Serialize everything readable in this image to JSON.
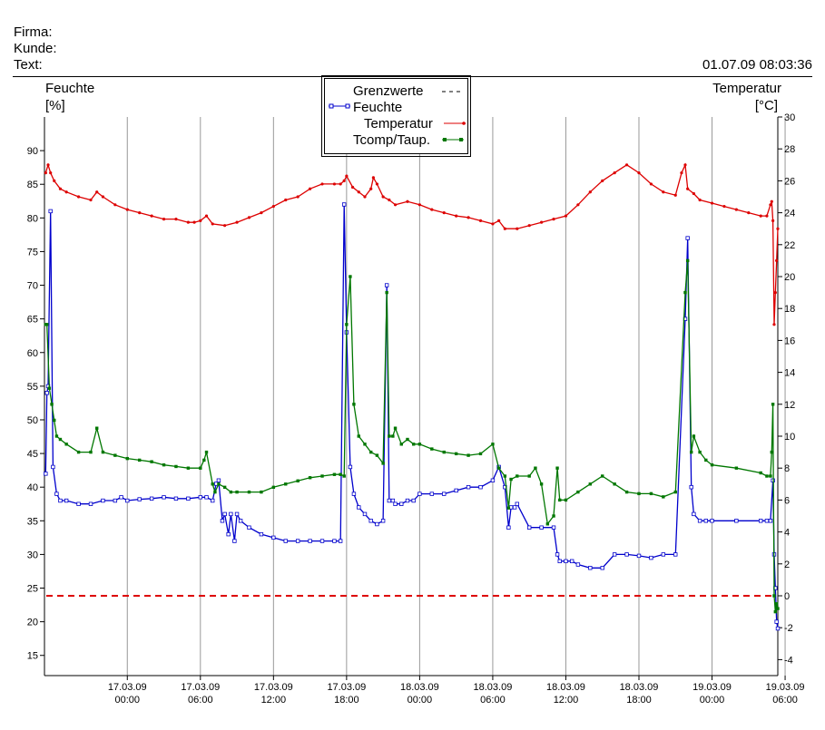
{
  "header": {
    "firma_label": "Firma:",
    "kunde_label": "Kunde:",
    "text_label": "Text:",
    "timestamp": "01.07.09 08:03:36"
  },
  "chart_data": {
    "type": "line",
    "left_axis": {
      "title": "Feuchte",
      "unit": "[%]",
      "ylim": [
        12,
        95
      ],
      "ticks": [
        15,
        20,
        25,
        30,
        35,
        40,
        45,
        50,
        55,
        60,
        65,
        70,
        75,
        80,
        85,
        90
      ]
    },
    "right_axis": {
      "title": "Temperatur",
      "unit": "[°C]",
      "ylim": [
        -5,
        30
      ],
      "ticks": [
        -4,
        -2,
        0,
        2,
        4,
        6,
        8,
        10,
        12,
        14,
        16,
        18,
        20,
        22,
        24,
        26,
        28,
        30
      ]
    },
    "x_axis": {
      "unit": "hours since start",
      "xlim": [
        -6.8,
        53.4
      ],
      "ticks": [
        0,
        6,
        12,
        18,
        24,
        30,
        36,
        42,
        48,
        54
      ],
      "tick_labels": [
        [
          "17.03.09",
          "00:00"
        ],
        [
          "17.03.09",
          "06:00"
        ],
        [
          "17.03.09",
          "12:00"
        ],
        [
          "17.03.09",
          "18:00"
        ],
        [
          "18.03.09",
          "00:00"
        ],
        [
          "18.03.09",
          "06:00"
        ],
        [
          "18.03.09",
          "12:00"
        ],
        [
          "18.03.09",
          "18:00"
        ],
        [
          "19.03.09",
          "00:00"
        ],
        [
          "19.03.09",
          "06:00"
        ]
      ],
      "grid": true
    },
    "legend": {
      "position": "top-center",
      "entries": [
        {
          "label": "Grenzwerte",
          "color": "#cc0000",
          "style": "dashed"
        },
        {
          "label": "Feuchte",
          "color": "#0000cc",
          "style": "line-square"
        },
        {
          "label": "Temperatur",
          "color": "#dd0000",
          "style": "line-dot"
        },
        {
          "label": "Tcomp/Taup.",
          "color": "#007700",
          "style": "line-square"
        }
      ]
    },
    "limit": {
      "name": "Grenzwerte",
      "axis": "right",
      "value": 0.0
    },
    "series": [
      {
        "name": "Feuchte",
        "axis": "left",
        "color": "#0000cc",
        "x": [
          -6.7,
          -6.6,
          -6.5,
          -6.3,
          -6.1,
          -5.8,
          -5.5,
          -5,
          -4,
          -3,
          -2,
          -1,
          -0.5,
          0,
          1,
          2,
          3,
          4,
          5,
          6,
          6.5,
          7,
          7.3,
          7.5,
          7.8,
          8,
          8.3,
          8.5,
          8.8,
          9,
          9.3,
          10,
          11,
          12,
          13,
          14,
          15,
          16,
          17,
          17.5,
          17.8,
          18,
          18.3,
          18.6,
          19,
          19.5,
          20,
          20.5,
          21,
          21.3,
          21.5,
          21.8,
          22,
          22.5,
          23,
          23.5,
          24,
          25,
          26,
          27,
          28,
          29,
          30,
          30.5,
          31,
          31.3,
          31.5,
          31.8,
          32,
          33,
          34,
          35,
          35.3,
          35.5,
          36,
          36.5,
          37,
          38,
          39,
          40,
          41,
          42,
          43,
          44,
          45,
          45.8,
          46,
          46.3,
          46.5,
          47,
          47.5,
          48,
          50,
          52,
          52.5,
          52.8,
          53,
          53.1,
          53.2,
          53.3,
          53.4
        ],
        "y": [
          42,
          54,
          55,
          81,
          43,
          39,
          38,
          38,
          37.5,
          37.5,
          38,
          38,
          38.5,
          38,
          38.2,
          38.3,
          38.5,
          38.3,
          38.3,
          38.5,
          38.5,
          38,
          40.5,
          41,
          35,
          36,
          33,
          36,
          32,
          36,
          35,
          34,
          33,
          32.5,
          32,
          32,
          32,
          32,
          32,
          32,
          82,
          63,
          43,
          39,
          37,
          36,
          35,
          34.5,
          35,
          70,
          38,
          38,
          37.5,
          37.5,
          38,
          38,
          39,
          39,
          39,
          39.5,
          40,
          40,
          41,
          43,
          40,
          34,
          37,
          37,
          37.5,
          34,
          34,
          34,
          30,
          29,
          29,
          29,
          28.5,
          28,
          28,
          30,
          30,
          29.8,
          29.5,
          30,
          30,
          65,
          77,
          40,
          36,
          35,
          35,
          35,
          35,
          35,
          35,
          35,
          41,
          30,
          25,
          20,
          19
        ]
      },
      {
        "name": "Temperatur",
        "axis": "right",
        "color": "#dd0000",
        "x": [
          -6.7,
          -6.5,
          -6.3,
          -6,
          -5.5,
          -5,
          -4,
          -3,
          -2.5,
          -2,
          -1,
          0,
          1,
          2,
          3,
          4,
          5,
          5.5,
          6,
          6.5,
          7,
          8,
          9,
          10,
          11,
          12,
          13,
          14,
          15,
          16,
          17,
          17.5,
          17.8,
          18,
          18.5,
          19,
          19.5,
          20,
          20.2,
          20.5,
          21,
          21.5,
          22,
          23,
          24,
          25,
          26,
          27,
          28,
          29,
          30,
          30.5,
          31,
          32,
          33,
          34,
          35,
          36,
          37,
          38,
          39,
          40,
          41,
          42,
          43,
          44,
          45,
          45.5,
          45.8,
          46,
          46.5,
          47,
          48,
          49,
          50,
          51,
          52,
          52.5,
          52.8,
          52.9,
          53,
          53.1,
          53.2,
          53.3,
          53.4
        ],
        "y": [
          26.5,
          27,
          26.5,
          26,
          25.5,
          25.3,
          25,
          24.8,
          25.3,
          25,
          24.5,
          24.2,
          24,
          23.8,
          23.6,
          23.6,
          23.4,
          23.4,
          23.5,
          23.8,
          23.3,
          23.2,
          23.4,
          23.7,
          24,
          24.4,
          24.8,
          25,
          25.5,
          25.8,
          25.8,
          25.8,
          26,
          26.3,
          25.6,
          25.3,
          25,
          25.5,
          26.2,
          25.8,
          25,
          24.8,
          24.5,
          24.7,
          24.5,
          24.2,
          24,
          23.8,
          23.7,
          23.5,
          23.3,
          23.5,
          23,
          23,
          23.2,
          23.4,
          23.6,
          23.8,
          24.5,
          25.3,
          26,
          26.5,
          27,
          26.5,
          25.8,
          25.3,
          25.1,
          26.5,
          27,
          25.5,
          25.2,
          24.8,
          24.6,
          24.4,
          24.2,
          24,
          23.8,
          23.8,
          24.5,
          24.7,
          23.5,
          17,
          19,
          21,
          23
        ]
      },
      {
        "name": "Tcomp/Taup.",
        "axis": "right",
        "color": "#007700",
        "x": [
          -6.7,
          -6.6,
          -6.4,
          -6.2,
          -6,
          -5.8,
          -5.5,
          -5,
          -4,
          -3,
          -2.5,
          -2,
          -1,
          0,
          1,
          2,
          3,
          4,
          5,
          6,
          6.3,
          6.5,
          7,
          7.2,
          7.5,
          8,
          8.5,
          9,
          10,
          11,
          12,
          13,
          14,
          15,
          16,
          17,
          17.5,
          17.8,
          18,
          18.3,
          18.6,
          19,
          19.5,
          20,
          20.5,
          21,
          21.3,
          21.5,
          21.8,
          22,
          22.5,
          23,
          23.5,
          24,
          25,
          26,
          27,
          28,
          29,
          30,
          30.5,
          31,
          31.3,
          31.5,
          32,
          33,
          33.5,
          34,
          34.5,
          35,
          35.3,
          35.5,
          36,
          37,
          38,
          39,
          40,
          41,
          42,
          43,
          44,
          45,
          45.8,
          46,
          46.3,
          46.5,
          47,
          47.5,
          48,
          50,
          52,
          52.5,
          52.8,
          52.9,
          53,
          53.1,
          53.2,
          53.3,
          53.4
        ],
        "y": [
          17,
          17,
          13,
          12,
          11,
          10,
          9.8,
          9.5,
          9,
          9,
          10.5,
          9,
          8.8,
          8.6,
          8.5,
          8.4,
          8.2,
          8.1,
          8,
          8,
          8.5,
          9,
          7,
          6.5,
          7,
          6.8,
          6.5,
          6.5,
          6.5,
          6.5,
          6.8,
          7,
          7.2,
          7.4,
          7.5,
          7.6,
          7.6,
          7.5,
          17,
          20,
          12,
          10,
          9.5,
          9,
          8.8,
          8.3,
          19,
          10,
          10,
          10.5,
          9.5,
          9.8,
          9.5,
          9.5,
          9.2,
          9,
          8.9,
          8.8,
          8.9,
          9.5,
          8,
          7.5,
          5.5,
          7.3,
          7.5,
          7.5,
          8,
          7,
          4.5,
          5,
          8,
          6,
          6,
          6.5,
          7,
          7.5,
          7,
          6.5,
          6.4,
          6.4,
          6.2,
          6.5,
          19,
          21,
          9,
          10,
          9,
          8.5,
          8.2,
          8,
          7.7,
          7.5,
          7.5,
          9,
          12,
          0,
          -1,
          -0.5,
          -0.8
        ]
      }
    ]
  }
}
